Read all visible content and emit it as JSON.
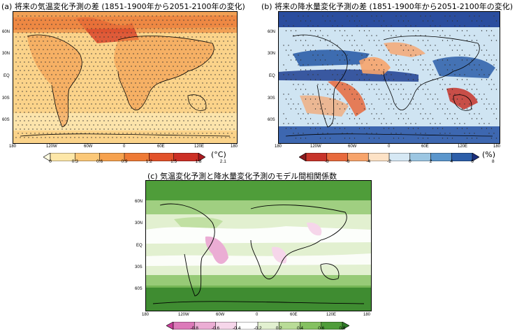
{
  "chart_data": [
    {
      "type": "heatmap",
      "panel": "a",
      "title": "(a) 将来の気温変化予測の差 (1851-1900年から2051-2100年の変化)",
      "x_tick_labels": [
        "180",
        "120W",
        "60W",
        "0",
        "60E",
        "120E",
        "180"
      ],
      "y_tick_labels": [
        "60N",
        "30N",
        "EQ",
        "30S",
        "60S"
      ],
      "colorbar": {
        "ticks": [
          "0",
          "0.3",
          "0.6",
          "0.9",
          "1.2",
          "1.5",
          "1.8",
          "2.1"
        ],
        "unit": "(°C)",
        "colors": [
          "#fffbe0",
          "#fde7a8",
          "#fbc878",
          "#f6a24e",
          "#ee7a35",
          "#e2522a",
          "#cc2f25",
          "#a81a20"
        ]
      }
    },
    {
      "type": "heatmap",
      "panel": "b",
      "title": "(b) 将来の降水量変化予測の差 (1851-1900年から2051-2100年の変化)",
      "x_tick_labels": [
        "180",
        "120W",
        "60W",
        "0",
        "60E",
        "120E",
        "180"
      ],
      "y_tick_labels": [
        "60N",
        "30N",
        "EQ",
        "30S",
        "60S"
      ],
      "colorbar": {
        "ticks": [
          "-8",
          "-6",
          "-4",
          "-2",
          "0",
          "2",
          "4",
          "6",
          "8"
        ],
        "unit": "(%)",
        "colors": [
          "#8a1a1e",
          "#c7342a",
          "#e86a3d",
          "#f7a46b",
          "#fde2c6",
          "#d6e8f4",
          "#9cc6e2",
          "#5b96cc",
          "#2c5ea9",
          "#1c2f7e"
        ]
      }
    },
    {
      "type": "heatmap",
      "panel": "c",
      "title": "(c) 気温変化予測と降水量変化予測のモデル間相関係数",
      "x_tick_labels": [
        "180",
        "120W",
        "60W",
        "0",
        "60E",
        "120E",
        "180"
      ],
      "y_tick_labels": [
        "60N",
        "30N",
        "EQ",
        "30S",
        "60S"
      ],
      "colorbar": {
        "ticks": [
          "-0.8",
          "-0.6",
          "-0.4",
          "-0.2",
          "0.2",
          "0.4",
          "0.6",
          "0.8"
        ],
        "unit": "",
        "colors": [
          "#c9409a",
          "#dc7ab9",
          "#ebadd4",
          "#f6d6ea",
          "#ffffff",
          "#e2f0d0",
          "#b9dc97",
          "#84c160",
          "#4f9d3a",
          "#2d7a27"
        ]
      }
    }
  ]
}
